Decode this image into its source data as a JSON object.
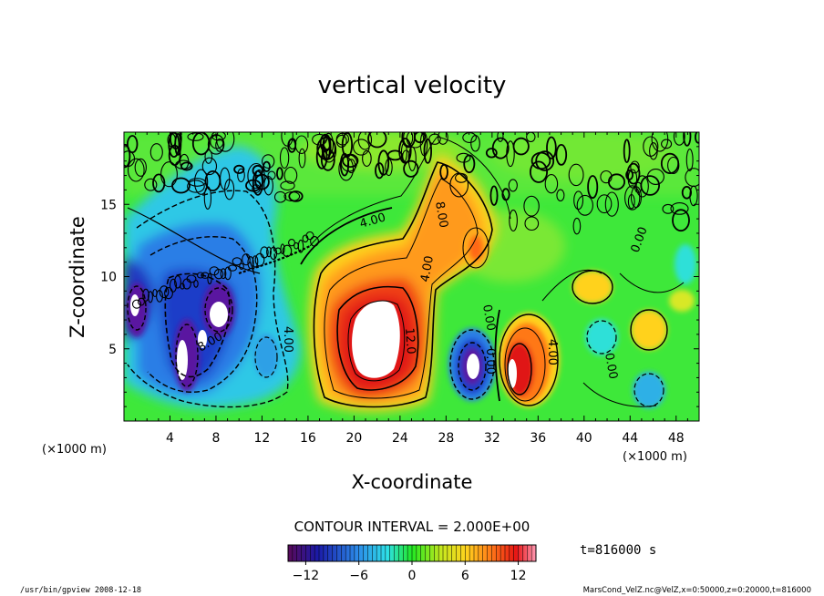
{
  "chart_data": {
    "type": "heatmap",
    "title": "vertical velocity",
    "xlabel": "X-coordinate",
    "ylabel": "Z-coordinate",
    "x_unit": "(×1000 m)",
    "y_unit": "(×1000 m)",
    "xlim": [
      0,
      50
    ],
    "ylim": [
      0,
      20
    ],
    "x_ticks": [
      4,
      8,
      12,
      16,
      20,
      24,
      28,
      32,
      36,
      40,
      44,
      48
    ],
    "y_ticks": [
      5,
      10,
      15
    ],
    "contour_interval": "CONTOUR INTERVAL = 2.000E+00",
    "contour_labels": [
      "4.00",
      "8.00",
      "4.00",
      "12.0",
      "0.00",
      "4.00",
      "0.00",
      "0.00",
      "4.00",
      "8.00",
      "0.00"
    ],
    "colorbar": {
      "min": -14,
      "max": 14,
      "ticks": [
        -12,
        -6,
        0,
        6,
        12
      ]
    },
    "time_label": "t=816000  s",
    "footer_left": "/usr/bin/gpview  2008-12-18",
    "footer_right": "MarsCond_VelZ.nc@VelZ,x=0:50000,z=0:20000,t=816000",
    "features": [
      {
        "x": 21.8,
        "z": 6.3,
        "value": 14,
        "sign": "updraft"
      },
      {
        "x": 25.5,
        "z": 13.0,
        "value": 9,
        "sign": "updraft"
      },
      {
        "x": 34.5,
        "z": 4.5,
        "value": 10,
        "sign": "updraft"
      },
      {
        "x": 30.5,
        "z": 4.2,
        "value": -12,
        "sign": "downdraft"
      },
      {
        "x": 33.5,
        "z": 4.0,
        "value": 14,
        "sign": "updraft"
      },
      {
        "x": 6.5,
        "z": 6.5,
        "value": -13,
        "sign": "downdraft"
      },
      {
        "x": 1.5,
        "z": 8.0,
        "value": -10,
        "sign": "downdraft"
      },
      {
        "x": 10.0,
        "z": 13.0,
        "value": -4,
        "sign": "downdraft"
      },
      {
        "x": 40.5,
        "z": 9.5,
        "value": 4,
        "sign": "updraft"
      },
      {
        "x": 46.5,
        "z": 7.0,
        "value": 3,
        "sign": "updraft"
      },
      {
        "x": 45.0,
        "z": 2.5,
        "value": -4,
        "sign": "downdraft"
      }
    ]
  }
}
